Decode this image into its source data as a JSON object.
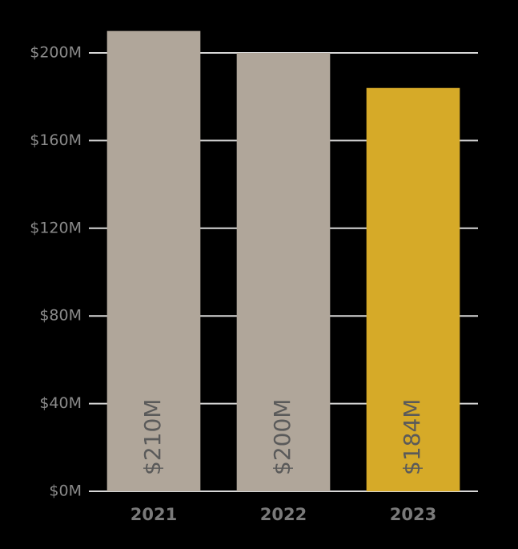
{
  "chart_data": {
    "type": "bar",
    "categories": [
      "2021",
      "2022",
      "2023"
    ],
    "values": [
      210,
      200,
      184
    ],
    "value_labels": [
      "$210M",
      "$200M",
      "$184M"
    ],
    "colors": [
      "#b0a69a",
      "#b0a69a",
      "#d6aa28"
    ],
    "ylim": [
      0,
      200
    ],
    "yticks": [
      {
        "value": 0,
        "label": "$0M"
      },
      {
        "value": 40,
        "label": "$40M"
      },
      {
        "value": 80,
        "label": "$80M"
      },
      {
        "value": 120,
        "label": "$120M"
      },
      {
        "value": 160,
        "label": "$160M"
      },
      {
        "value": 200,
        "label": "$200M"
      }
    ],
    "grid": true
  }
}
